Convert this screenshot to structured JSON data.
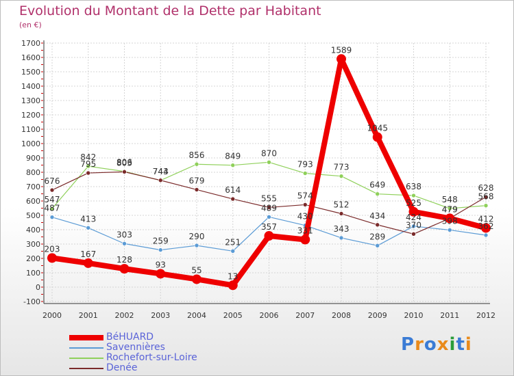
{
  "title": "Evolution du Montant de la Dette par Habitant",
  "unit": "(en €)",
  "logo": {
    "text": "Proxiti",
    "colors": [
      "#3a7bd5",
      "#e98a1b",
      "#3a7bd5",
      "#e98a1b",
      "#2a9d3a",
      "#3a7bd5",
      "#e98a1b"
    ]
  },
  "chart_data": {
    "type": "line",
    "x": [
      2000,
      2001,
      2002,
      2003,
      2004,
      2005,
      2006,
      2007,
      2008,
      2009,
      2010,
      2011,
      2012
    ],
    "ylim": [
      -100,
      1700
    ],
    "yticks": [
      -100,
      0,
      100,
      200,
      300,
      400,
      500,
      600,
      700,
      800,
      900,
      1000,
      1100,
      1200,
      1300,
      1400,
      1500,
      1600,
      1700
    ],
    "grid": true,
    "legend_position": "bottom-left",
    "series": [
      {
        "name": "BéHUARD",
        "color": "#ee0000",
        "width": 8,
        "marker": 7,
        "values": [
          203,
          167,
          128,
          93,
          55,
          13,
          357,
          331,
          1589,
          1045,
          525,
          479,
          412
        ],
        "labels": [
          "203",
          "167",
          "128",
          "93",
          "55",
          "13",
          "357",
          "331",
          "1589",
          "1045",
          "525",
          "479",
          "412"
        ]
      },
      {
        "name": "Savennières",
        "color": "#5b9bd5",
        "width": 1.2,
        "marker": 3,
        "values": [
          487,
          413,
          303,
          259,
          290,
          251,
          489,
          430,
          343,
          289,
          424,
          398,
          362
        ],
        "labels": [
          "487",
          "413",
          "303",
          "259",
          "290",
          "251",
          "489",
          "430",
          "343",
          "289",
          "424",
          "398",
          "362"
        ]
      },
      {
        "name": "Rochefort-sur-Loire",
        "color": "#8fd05a",
        "width": 1.2,
        "marker": 3,
        "values": [
          547,
          842,
          806,
          743,
          856,
          849,
          870,
          793,
          773,
          649,
          638,
          548,
          568
        ],
        "labels": [
          "547",
          "842",
          "806",
          "743",
          "856",
          "849",
          "870",
          "793",
          "773",
          "649",
          "638",
          "548",
          "568"
        ]
      },
      {
        "name": "Denée",
        "color": "#7a2a2a",
        "width": 1.2,
        "marker": 3,
        "values": [
          676,
          795,
          803,
          744,
          679,
          614,
          555,
          574,
          512,
          434,
          370,
          479,
          628
        ],
        "labels": [
          "676",
          "795",
          "803",
          "744",
          "679",
          "614",
          "555",
          "574",
          "512",
          "434",
          "370",
          "479",
          "628"
        ]
      }
    ]
  }
}
